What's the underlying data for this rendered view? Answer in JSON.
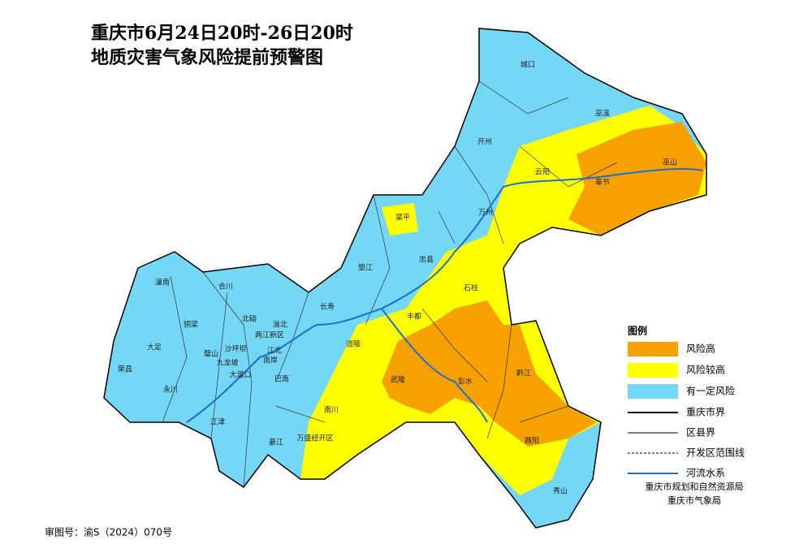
{
  "title": [
    "重庆市6月24日20时-26日20时",
    "地质灾害气象风险提前预警图"
  ],
  "districts": [
    "城口",
    "巫溪",
    "开州",
    "云阳",
    "奉节",
    "巫山",
    "万州",
    "梁平",
    "垫江",
    "忠县",
    "石柱",
    "丰都",
    "长寿",
    "涪陵",
    "武隆",
    "彭水",
    "黔江",
    "酉阳",
    "秀山",
    "潼南",
    "合川",
    "大足",
    "铜梁",
    "北碚",
    "渝北",
    "两江新区",
    "璧山",
    "沙坪坝",
    "江北",
    "荣昌",
    "九龙坡",
    "南岸",
    "永川",
    "大渡口",
    "巴南",
    "江津",
    "南川",
    "綦江",
    "万盛经开区"
  ],
  "legend": {
    "title": "图例",
    "areas": [
      {
        "label": "风险高",
        "color": "#f7a100"
      },
      {
        "label": "风险较高",
        "color": "#ffff00"
      },
      {
        "label": "有一定风险",
        "color": "#73d7f5"
      }
    ],
    "lines": [
      {
        "label": "重庆市界",
        "style": "solid-thick"
      },
      {
        "label": "区县界",
        "style": "solid-thin"
      },
      {
        "label": "开发区范围线",
        "style": "dashed"
      },
      {
        "label": "河流水系",
        "style": "river"
      }
    ]
  },
  "credits": [
    "重庆市规划和自然资源局",
    "重庆市气象局"
  ],
  "review_number": "审图号：渝S（2024）070号"
}
